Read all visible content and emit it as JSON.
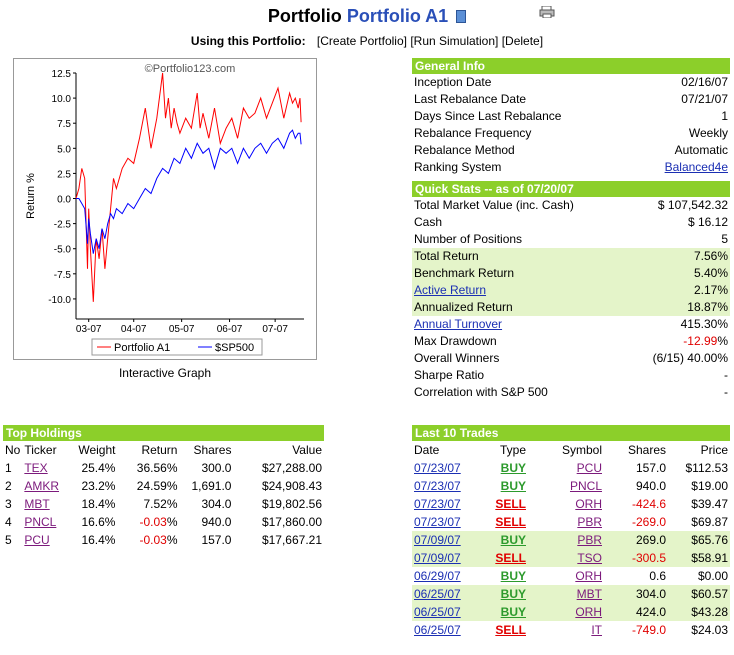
{
  "header": {
    "prefix": "Portfolio",
    "portfolio_name": "Portfolio A1"
  },
  "toolbar": {
    "label": "Using this Portfolio:",
    "create": "[Create Portfolio]",
    "simulate": "[Run Simulation]",
    "delete": "[Delete]"
  },
  "chart_caption": "Interactive Graph",
  "chart_data": {
    "type": "line",
    "watermark": "©Portfolio123.com",
    "ylabel": "Return %",
    "ylim": [
      -12,
      12.5
    ],
    "yticks": [
      12.5,
      10.0,
      7.5,
      5.0,
      2.5,
      0.0,
      -2.5,
      -5.0,
      -7.5,
      -10.0
    ],
    "xticks": [
      "03-07",
      "04-07",
      "05-07",
      "06-07",
      "07-07"
    ],
    "xtick_pos": [
      0.22,
      1.0,
      1.83,
      2.66,
      3.45
    ],
    "legend_position": "bottom",
    "series": [
      {
        "name": "Portfolio A1",
        "color": "#ff0000",
        "x": [
          0,
          0.05,
          0.1,
          0.15,
          0.2,
          0.22,
          0.25,
          0.3,
          0.35,
          0.4,
          0.45,
          0.5,
          0.55,
          0.6,
          0.65,
          0.7,
          0.8,
          0.9,
          1.0,
          1.1,
          1.2,
          1.3,
          1.4,
          1.5,
          1.55,
          1.6,
          1.65,
          1.7,
          1.75,
          1.8,
          1.9,
          2.0,
          2.1,
          2.15,
          2.2,
          2.3,
          2.4,
          2.5,
          2.6,
          2.7,
          2.8,
          2.9,
          3.0,
          3.1,
          3.2,
          3.3,
          3.4,
          3.5,
          3.6,
          3.7,
          3.75,
          3.8,
          3.85,
          3.88,
          3.9
        ],
        "y": [
          0,
          1,
          3,
          2,
          -7,
          -1,
          -5,
          -10.3,
          -4,
          -6,
          -3,
          -7,
          -4,
          -1,
          2,
          1,
          3,
          4,
          3.5,
          6,
          9,
          5,
          8,
          12.5,
          8,
          10,
          7,
          9,
          7.5,
          6.5,
          8,
          7,
          10.5,
          7,
          8.5,
          6,
          9,
          5.5,
          7,
          8,
          6,
          9,
          8,
          8.5,
          10,
          8,
          9.5,
          11,
          8,
          10.5,
          9.5,
          10,
          9,
          10,
          7.6
        ]
      },
      {
        "name": "$SP500",
        "color": "#0000ff",
        "x": [
          0,
          0.05,
          0.1,
          0.15,
          0.2,
          0.22,
          0.25,
          0.3,
          0.35,
          0.4,
          0.45,
          0.5,
          0.55,
          0.6,
          0.65,
          0.7,
          0.8,
          0.9,
          1.0,
          1.1,
          1.2,
          1.3,
          1.4,
          1.5,
          1.6,
          1.7,
          1.8,
          1.9,
          2.0,
          2.1,
          2.2,
          2.3,
          2.4,
          2.5,
          2.6,
          2.7,
          2.8,
          2.9,
          3.0,
          3.1,
          3.2,
          3.3,
          3.4,
          3.5,
          3.6,
          3.7,
          3.75,
          3.8,
          3.85,
          3.88,
          3.9
        ],
        "y": [
          0,
          0,
          -0.5,
          -1,
          -4.5,
          -2,
          -3.5,
          -5.5,
          -4,
          -5,
          -3,
          -4,
          -2.5,
          -1.5,
          -2,
          -1,
          -1.5,
          -0.5,
          -1,
          0,
          1,
          0.5,
          2,
          3,
          2.5,
          4,
          3.5,
          5,
          4,
          5.5,
          4.5,
          5,
          3,
          5,
          4.5,
          5,
          3.5,
          5,
          4,
          5,
          5.5,
          4.5,
          5.5,
          6,
          5,
          6.5,
          6.8,
          6,
          6.5,
          6.5,
          5.4
        ]
      }
    ]
  },
  "general_info": {
    "title": "General Info",
    "rows": [
      {
        "label": "Inception Date",
        "value": "02/16/07"
      },
      {
        "label": "Last Rebalance Date",
        "value": "07/21/07"
      },
      {
        "label": "Days Since Last Rebalance",
        "value": "1"
      },
      {
        "label": "Rebalance Frequency",
        "value": "Weekly"
      },
      {
        "label": "Rebalance Method",
        "value": "Automatic"
      }
    ],
    "ranking_label": "Ranking System",
    "ranking_value": "Balanced4e"
  },
  "quick_stats": {
    "title": "Quick Stats -- as of 07/20/07",
    "rows": [
      {
        "label": "Total Market Value (inc. Cash)",
        "value": "$ 107,542.32"
      },
      {
        "label": "Cash",
        "value": "$ 16.12"
      },
      {
        "label": "Number of Positions",
        "value": "5"
      },
      {
        "label": "Total Return",
        "value": "7.56%"
      },
      {
        "label": "Benchmark Return",
        "value": "5.40%"
      },
      {
        "label": "Active Return",
        "value": "2.17%"
      },
      {
        "label": "Annualized Return",
        "value": "18.87%"
      },
      {
        "label": "Annual Turnover",
        "value": "415.30%"
      },
      {
        "label": "Max Drawdown",
        "value": "-12.99",
        "suffix": "%"
      },
      {
        "label": "Overall Winners",
        "value": "(6/15) 40.00%"
      },
      {
        "label": "Sharpe Ratio",
        "value": "-"
      },
      {
        "label": "Correlation with S&P 500",
        "value": "-"
      }
    ]
  },
  "top_holdings": {
    "title": "Top Holdings",
    "columns": [
      "No",
      "Ticker",
      "Weight",
      "Return",
      "Shares",
      "Value"
    ],
    "rows": [
      {
        "no": "1",
        "ticker": "TEX",
        "weight": "25.4%",
        "ret": "36.56",
        "ret_pct": "%",
        "shares": "300.0",
        "value": "$27,288.00"
      },
      {
        "no": "2",
        "ticker": "AMKR",
        "weight": "23.2%",
        "ret": "24.59",
        "ret_pct": "%",
        "shares": "1,691.0",
        "value": "$24,908.43"
      },
      {
        "no": "3",
        "ticker": "MBT",
        "weight": "18.4%",
        "ret": "7.52",
        "ret_pct": "%",
        "shares": "304.0",
        "value": "$19,802.56"
      },
      {
        "no": "4",
        "ticker": "PNCL",
        "weight": "16.6%",
        "ret": "-0.03",
        "ret_pct": "%",
        "shares": "940.0",
        "value": "$17,860.00"
      },
      {
        "no": "5",
        "ticker": "PCU",
        "weight": "16.4%",
        "ret": "-0.03",
        "ret_pct": "%",
        "shares": "157.0",
        "value": "$17,667.21"
      }
    ]
  },
  "last_trades": {
    "title": "Last 10 Trades",
    "columns": [
      "Date",
      "Type",
      "Symbol",
      "Shares",
      "Price"
    ],
    "rows": [
      {
        "date": "07/23/07",
        "type": "BUY",
        "symbol": "PCU",
        "shares": "157.0",
        "price": "$112.53"
      },
      {
        "date": "07/23/07",
        "type": "BUY",
        "symbol": "PNCL",
        "shares": "940.0",
        "price": "$19.00"
      },
      {
        "date": "07/23/07",
        "type": "SELL",
        "symbol": "ORH",
        "shares": "-424.6",
        "price": "$39.47"
      },
      {
        "date": "07/23/07",
        "type": "SELL",
        "symbol": "PBR",
        "shares": "-269.0",
        "price": "$69.87"
      },
      {
        "date": "07/09/07",
        "type": "BUY",
        "symbol": "PBR",
        "shares": "269.0",
        "price": "$65.76"
      },
      {
        "date": "07/09/07",
        "type": "SELL",
        "symbol": "TSO",
        "shares": "-300.5",
        "price": "$58.91"
      },
      {
        "date": "06/29/07",
        "type": "BUY",
        "symbol": "ORH",
        "shares": "0.6",
        "price": "$0.00"
      },
      {
        "date": "06/25/07",
        "type": "BUY",
        "symbol": "MBT",
        "shares": "304.0",
        "price": "$60.57"
      },
      {
        "date": "06/25/07",
        "type": "BUY",
        "symbol": "ORH",
        "shares": "424.0",
        "price": "$43.28"
      },
      {
        "date": "06/25/07",
        "type": "SELL",
        "symbol": "IT",
        "shares": "-749.0",
        "price": "$24.03"
      }
    ]
  }
}
